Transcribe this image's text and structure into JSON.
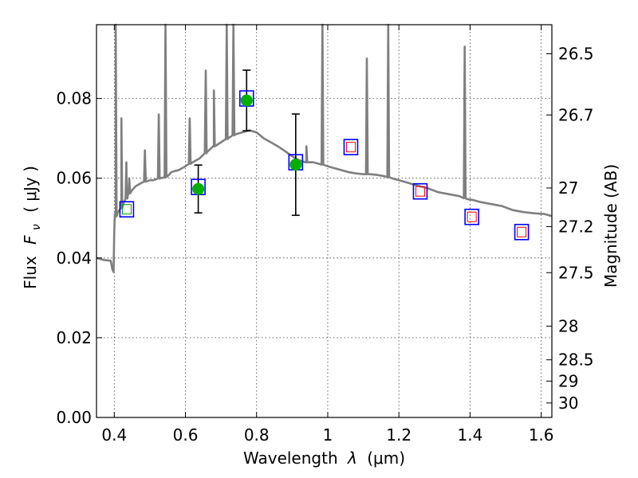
{
  "chart_data": {
    "type": "scatter",
    "xlabel": "Wavelength",
    "xlabel_symbol": "λ",
    "xlabel_unit": "(μm)",
    "ylabel": "Flux",
    "ylabel_symbol": "F",
    "ylabel_subscript": "ν",
    "ylabel_unit": "( μJy )",
    "y2label": "Magnitude (AB)",
    "xlim": [
      0.35,
      1.63
    ],
    "ylim": [
      0.0,
      0.0985
    ],
    "grid": true,
    "x_ticks": [
      {
        "value": 0.4,
        "label": "0.4"
      },
      {
        "value": 0.6,
        "label": "0.6"
      },
      {
        "value": 0.8,
        "label": "0.8"
      },
      {
        "value": 1.0,
        "label": "1"
      },
      {
        "value": 1.2,
        "label": "1.2"
      },
      {
        "value": 1.4,
        "label": "1.4"
      },
      {
        "value": 1.6,
        "label": "1.6"
      }
    ],
    "y_ticks": [
      {
        "value": 0.0,
        "label": "0.00"
      },
      {
        "value": 0.02,
        "label": "0.02"
      },
      {
        "value": 0.04,
        "label": "0.04"
      },
      {
        "value": 0.06,
        "label": "0.06"
      },
      {
        "value": 0.08,
        "label": "0.08"
      }
    ],
    "mag_ticks": [
      {
        "value": 26.5,
        "label": "26.5"
      },
      {
        "value": 26.7,
        "label": "26.7"
      },
      {
        "value": 27.0,
        "label": "27"
      },
      {
        "value": 27.2,
        "label": "27.2"
      },
      {
        "value": 27.5,
        "label": "27.5"
      },
      {
        "value": 28.0,
        "label": "28"
      },
      {
        "value": 28.5,
        "label": "28.5"
      },
      {
        "value": 29.0,
        "label": "29"
      },
      {
        "value": 30.0,
        "label": "30"
      }
    ],
    "model_spectrum": {
      "color": "#7f7f7f",
      "x": [
        0.35,
        0.37,
        0.39,
        0.395,
        0.398,
        0.4,
        0.402,
        0.404,
        0.407,
        0.41,
        0.415,
        0.42,
        0.425,
        0.43,
        0.435,
        0.44,
        0.45,
        0.46,
        0.47,
        0.48,
        0.49,
        0.5,
        0.51,
        0.52,
        0.53,
        0.54,
        0.55,
        0.56,
        0.57,
        0.58,
        0.59,
        0.6,
        0.62,
        0.64,
        0.66,
        0.68,
        0.7,
        0.72,
        0.74,
        0.76,
        0.78,
        0.8,
        0.82,
        0.84,
        0.86,
        0.88,
        0.9,
        0.92,
        0.94,
        0.96,
        0.98,
        1.0,
        1.02,
        1.04,
        1.06,
        1.08,
        1.1,
        1.12,
        1.14,
        1.16,
        1.18,
        1.2,
        1.22,
        1.25,
        1.28,
        1.31,
        1.34,
        1.37,
        1.39,
        1.41,
        1.43,
        1.46,
        1.49,
        1.52,
        1.55,
        1.58,
        1.61,
        1.63
      ],
      "y": [
        0.04,
        0.0395,
        0.0393,
        0.037,
        0.0365,
        0.047,
        0.05,
        0.051,
        0.0505,
        0.0515,
        0.052,
        0.0525,
        0.0535,
        0.0545,
        0.055,
        0.056,
        0.057,
        0.058,
        0.0585,
        0.059,
        0.0592,
        0.0595,
        0.0595,
        0.0598,
        0.06,
        0.0602,
        0.0605,
        0.0615,
        0.0618,
        0.062,
        0.0625,
        0.063,
        0.064,
        0.065,
        0.0665,
        0.068,
        0.069,
        0.07,
        0.071,
        0.0715,
        0.072,
        0.0715,
        0.07,
        0.069,
        0.068,
        0.0668,
        0.0655,
        0.0645,
        0.064,
        0.064,
        0.0635,
        0.063,
        0.0625,
        0.062,
        0.0615,
        0.0612,
        0.061,
        0.061,
        0.0608,
        0.0605,
        0.06,
        0.0595,
        0.059,
        0.0582,
        0.0575,
        0.0565,
        0.056,
        0.0555,
        0.0548,
        0.0545,
        0.054,
        0.0535,
        0.053,
        0.052,
        0.0515,
        0.0512,
        0.051,
        0.0505
      ],
      "lines": [
        {
          "x": 0.404,
          "peak": 0.0985
        },
        {
          "x": 0.42,
          "peak": 0.075
        },
        {
          "x": 0.434,
          "peak": 0.064
        },
        {
          "x": 0.442,
          "peak": 0.06
        },
        {
          "x": 0.486,
          "peak": 0.067
        },
        {
          "x": 0.525,
          "peak": 0.076
        },
        {
          "x": 0.544,
          "peak": 0.0985
        },
        {
          "x": 0.612,
          "peak": 0.075
        },
        {
          "x": 0.657,
          "peak": 0.087
        },
        {
          "x": 0.68,
          "peak": 0.082
        },
        {
          "x": 0.716,
          "peak": 0.0985
        },
        {
          "x": 0.735,
          "peak": 0.0985
        },
        {
          "x": 0.94,
          "peak": 0.068
        },
        {
          "x": 0.985,
          "peak": 0.0985
        },
        {
          "x": 1.11,
          "peak": 0.09
        },
        {
          "x": 1.17,
          "peak": 0.0985
        },
        {
          "x": 1.385,
          "peak": 0.093
        }
      ]
    },
    "photometry": [
      {
        "x": 0.435,
        "model": 0.0522,
        "obs": null,
        "err": null,
        "inner_color": "#00a000"
      },
      {
        "x": 0.636,
        "model": 0.0578,
        "obs": 0.0573,
        "err": 0.006,
        "inner_color": null
      },
      {
        "x": 0.772,
        "model": 0.08,
        "obs": 0.0795,
        "err": 0.0076,
        "inner_color": null
      },
      {
        "x": 0.91,
        "model": 0.064,
        "obs": 0.0634,
        "err": 0.0127,
        "inner_color": null
      },
      {
        "x": 1.065,
        "model": 0.0678,
        "obs": null,
        "err": null,
        "inner_color": "#ff0000"
      },
      {
        "x": 1.26,
        "model": 0.0567,
        "obs": null,
        "err": null,
        "inner_color": "#ff0000"
      },
      {
        "x": 1.405,
        "model": 0.0503,
        "obs": null,
        "err": null,
        "inner_color": "#ff0000"
      },
      {
        "x": 1.545,
        "model": 0.0465,
        "obs": null,
        "err": null,
        "inner_color": "#ff0000"
      }
    ],
    "colors": {
      "model_box": "#0000ff",
      "detection": "#00b000",
      "errorbar": "#000000"
    }
  }
}
